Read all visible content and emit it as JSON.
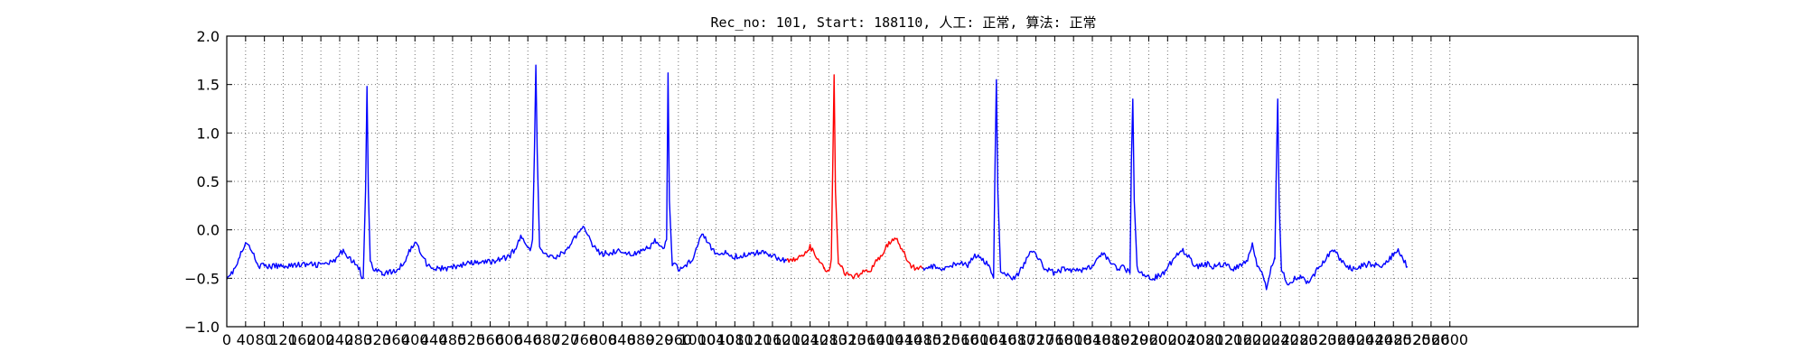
{
  "chart_data": {
    "type": "line",
    "title": "Rec_no: 101, Start: 188110, 人工: 正常, 算法: 正常",
    "xlabel": "",
    "ylabel": "",
    "xlim": [
      0,
      3000
    ],
    "ylim": [
      -1.0,
      2.0
    ],
    "grid": true,
    "y_ticks": [
      "2.0",
      "1.5",
      "1.0",
      "0.5",
      "0.0",
      "−0.5",
      "−1.0"
    ],
    "y_tick_values": [
      2.0,
      1.5,
      1.0,
      0.5,
      0.0,
      -0.5,
      -1.0
    ],
    "x_tick_values": [
      0,
      40,
      80,
      120,
      160,
      200,
      240,
      280,
      320,
      360,
      400,
      440,
      480,
      520,
      560,
      600,
      640,
      680,
      720,
      760,
      800,
      840,
      880,
      920,
      960,
      1000,
      1040,
      1080,
      1120,
      1160,
      1200,
      1240,
      1280,
      1320,
      1360,
      1400,
      1440,
      1480,
      1520,
      1560,
      1600,
      1640,
      1680,
      1720,
      1760,
      1800,
      1840,
      1880,
      1920,
      1960,
      2000,
      2040,
      2080,
      2120,
      2160,
      2200,
      2240,
      2280,
      2320,
      2360,
      2400,
      2440,
      2480,
      2520,
      2560,
      2600
    ],
    "x_tick_labels": [
      "0",
      "40",
      "80",
      "120",
      "160",
      "200",
      "240",
      "280",
      "320",
      "360",
      "400",
      "440",
      "480",
      "520",
      "560",
      "600",
      "640",
      "680",
      "720",
      "760",
      "800",
      "840",
      "880",
      "920",
      "960",
      "1000",
      "1040",
      "1080",
      "1120",
      "1160",
      "1200",
      "1240",
      "1280",
      "1320",
      "1360",
      "1400",
      "1440",
      "1480",
      "1520",
      "1560",
      "1600",
      "1640",
      "1680",
      "1720",
      "1760",
      "1800",
      "1840",
      "1880",
      "1920",
      "1960",
      "2000",
      "2040",
      "2080",
      "2120",
      "2160",
      "2200",
      "2240",
      "2280",
      "2320",
      "2360",
      "2400",
      "2440",
      "2480",
      "2520",
      "2560",
      "2600"
    ],
    "series": [
      {
        "color": "#0000ff",
        "x_range": [
          0,
          1190
        ],
        "points": [
          [
            0,
            -0.48
          ],
          [
            10,
            -0.45
          ],
          [
            20,
            -0.38
          ],
          [
            30,
            -0.25
          ],
          [
            40,
            -0.15
          ],
          [
            50,
            -0.18
          ],
          [
            60,
            -0.3
          ],
          [
            70,
            -0.37
          ],
          [
            90,
            -0.38
          ],
          [
            120,
            -0.37
          ],
          [
            160,
            -0.36
          ],
          [
            200,
            -0.36
          ],
          [
            230,
            -0.33
          ],
          [
            240,
            -0.25
          ],
          [
            250,
            -0.22
          ],
          [
            260,
            -0.28
          ],
          [
            270,
            -0.34
          ],
          [
            280,
            -0.38
          ],
          [
            285,
            -0.45
          ],
          [
            290,
            -0.5
          ],
          [
            295,
            0.4
          ],
          [
            298,
            1.48
          ],
          [
            301,
            0.4
          ],
          [
            305,
            -0.3
          ],
          [
            312,
            -0.4
          ],
          [
            330,
            -0.45
          ],
          [
            360,
            -0.43
          ],
          [
            375,
            -0.35
          ],
          [
            390,
            -0.2
          ],
          [
            400,
            -0.13
          ],
          [
            412,
            -0.22
          ],
          [
            425,
            -0.35
          ],
          [
            440,
            -0.4
          ],
          [
            470,
            -0.4
          ],
          [
            510,
            -0.35
          ],
          [
            560,
            -0.33
          ],
          [
            600,
            -0.28
          ],
          [
            615,
            -0.18
          ],
          [
            625,
            -0.08
          ],
          [
            635,
            -0.12
          ],
          [
            645,
            -0.2
          ],
          [
            650,
            -0.1
          ],
          [
            654,
            0.8
          ],
          [
            657,
            1.7
          ],
          [
            660,
            0.8
          ],
          [
            665,
            -0.2
          ],
          [
            675,
            -0.25
          ],
          [
            700,
            -0.28
          ],
          [
            720,
            -0.22
          ],
          [
            740,
            -0.08
          ],
          [
            760,
            0.02
          ],
          [
            770,
            -0.05
          ],
          [
            780,
            -0.18
          ],
          [
            795,
            -0.25
          ],
          [
            830,
            -0.22
          ],
          [
            870,
            -0.25
          ],
          [
            900,
            -0.18
          ],
          [
            910,
            -0.1
          ],
          [
            920,
            -0.18
          ],
          [
            930,
            -0.2
          ],
          [
            935,
            -0.1
          ],
          [
            938,
            1.62
          ],
          [
            941,
            0.3
          ],
          [
            947,
            -0.35
          ],
          [
            960,
            -0.4
          ],
          [
            980,
            -0.35
          ],
          [
            990,
            -0.3
          ],
          [
            1000,
            -0.15
          ],
          [
            1010,
            -0.02
          ],
          [
            1020,
            -0.1
          ],
          [
            1030,
            -0.2
          ],
          [
            1040,
            -0.25
          ],
          [
            1060,
            -0.24
          ],
          [
            1080,
            -0.28
          ],
          [
            1100,
            -0.26
          ],
          [
            1120,
            -0.25
          ],
          [
            1140,
            -0.22
          ],
          [
            1160,
            -0.26
          ],
          [
            1175,
            -0.3
          ],
          [
            1190,
            -0.32
          ]
        ]
      },
      {
        "color": "#ff0000",
        "x_range": [
          1190,
          1480
        ],
        "points": [
          [
            1190,
            -0.32
          ],
          [
            1210,
            -0.3
          ],
          [
            1230,
            -0.25
          ],
          [
            1240,
            -0.18
          ],
          [
            1250,
            -0.25
          ],
          [
            1262,
            -0.35
          ],
          [
            1270,
            -0.4
          ],
          [
            1280,
            -0.45
          ],
          [
            1285,
            -0.3
          ],
          [
            1288,
            0.6
          ],
          [
            1291,
            1.6
          ],
          [
            1294,
            0.4
          ],
          [
            1300,
            -0.35
          ],
          [
            1315,
            -0.45
          ],
          [
            1330,
            -0.5
          ],
          [
            1350,
            -0.45
          ],
          [
            1370,
            -0.4
          ],
          [
            1385,
            -0.3
          ],
          [
            1400,
            -0.2
          ],
          [
            1415,
            -0.08
          ],
          [
            1425,
            -0.1
          ],
          [
            1435,
            -0.2
          ],
          [
            1445,
            -0.3
          ],
          [
            1455,
            -0.38
          ],
          [
            1480,
            -0.4
          ]
        ]
      },
      {
        "color": "#0000ff",
        "x_range": [
          1480,
          2510
        ],
        "points": [
          [
            1480,
            -0.4
          ],
          [
            1500,
            -0.38
          ],
          [
            1520,
            -0.4
          ],
          [
            1540,
            -0.36
          ],
          [
            1560,
            -0.34
          ],
          [
            1575,
            -0.38
          ],
          [
            1590,
            -0.25
          ],
          [
            1600,
            -0.3
          ],
          [
            1620,
            -0.35
          ],
          [
            1630,
            -0.5
          ],
          [
            1633,
            0.6
          ],
          [
            1636,
            1.55
          ],
          [
            1639,
            0.4
          ],
          [
            1645,
            -0.45
          ],
          [
            1660,
            -0.48
          ],
          [
            1675,
            -0.5
          ],
          [
            1690,
            -0.4
          ],
          [
            1705,
            -0.25
          ],
          [
            1715,
            -0.2
          ],
          [
            1725,
            -0.3
          ],
          [
            1740,
            -0.4
          ],
          [
            1760,
            -0.45
          ],
          [
            1780,
            -0.4
          ],
          [
            1810,
            -0.42
          ],
          [
            1840,
            -0.38
          ],
          [
            1860,
            -0.25
          ],
          [
            1875,
            -0.3
          ],
          [
            1890,
            -0.4
          ],
          [
            1905,
            -0.38
          ],
          [
            1920,
            -0.45
          ],
          [
            1923,
            0.7
          ],
          [
            1926,
            1.35
          ],
          [
            1929,
            0.3
          ],
          [
            1935,
            -0.4
          ],
          [
            1950,
            -0.48
          ],
          [
            1970,
            -0.5
          ],
          [
            1990,
            -0.45
          ],
          [
            2005,
            -0.35
          ],
          [
            2020,
            -0.25
          ],
          [
            2030,
            -0.2
          ],
          [
            2045,
            -0.28
          ],
          [
            2060,
            -0.38
          ],
          [
            2080,
            -0.35
          ],
          [
            2100,
            -0.38
          ],
          [
            2120,
            -0.35
          ],
          [
            2140,
            -0.4
          ],
          [
            2160,
            -0.35
          ],
          [
            2170,
            -0.3
          ],
          [
            2180,
            -0.15
          ],
          [
            2190,
            -0.35
          ],
          [
            2200,
            -0.45
          ],
          [
            2210,
            -0.6
          ],
          [
            2220,
            -0.4
          ],
          [
            2228,
            -0.3
          ],
          [
            2231,
            0.6
          ],
          [
            2234,
            1.35
          ],
          [
            2237,
            0.3
          ],
          [
            2242,
            -0.4
          ],
          [
            2255,
            -0.55
          ],
          [
            2270,
            -0.5
          ],
          [
            2285,
            -0.48
          ],
          [
            2300,
            -0.55
          ],
          [
            2320,
            -0.4
          ],
          [
            2335,
            -0.3
          ],
          [
            2350,
            -0.2
          ],
          [
            2360,
            -0.25
          ],
          [
            2375,
            -0.35
          ],
          [
            2390,
            -0.4
          ],
          [
            2410,
            -0.38
          ],
          [
            2430,
            -0.35
          ],
          [
            2450,
            -0.38
          ],
          [
            2470,
            -0.32
          ],
          [
            2480,
            -0.25
          ],
          [
            2490,
            -0.2
          ],
          [
            2500,
            -0.3
          ],
          [
            2510,
            -0.38
          ]
        ]
      }
    ]
  }
}
